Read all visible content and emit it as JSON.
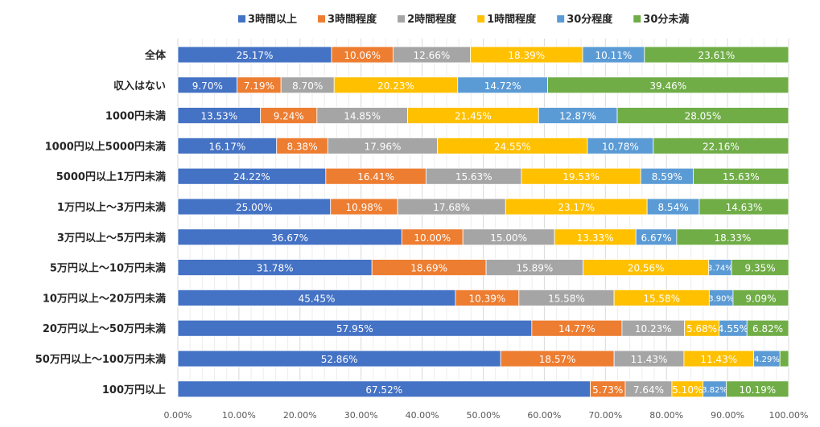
{
  "chart_data": {
    "type": "bar",
    "orientation": "horizontal",
    "stacked": "percent",
    "title": "",
    "xlabel": "",
    "ylabel": "",
    "xlim": [
      0,
      100
    ],
    "xticks": [
      "0.00%",
      "10.00%",
      "20.00%",
      "30.00%",
      "40.00%",
      "50.00%",
      "60.00%",
      "70.00%",
      "80.00%",
      "90.00%",
      "100.00%"
    ],
    "grid": true,
    "legend_position": "top",
    "categories": [
      "全体",
      "収入はない",
      "1000円未満",
      "1000円以上5000円未満",
      "5000円以上1万円未満",
      "1万円以上～3万円未満",
      "3万円以上～5万円未満",
      "5万円以上～10万円未満",
      "10万円以上～20万円未満",
      "20万円以上～50万円未満",
      "50万円以上～100万円未満",
      "100万円以上"
    ],
    "series": [
      {
        "name": "3時間以上",
        "color": "#4472C4",
        "values": [
          25.17,
          9.7,
          13.53,
          16.17,
          24.22,
          25.0,
          36.67,
          31.78,
          45.45,
          57.95,
          52.86,
          67.52
        ]
      },
      {
        "name": "3時間程度",
        "color": "#ED7D31",
        "values": [
          10.06,
          7.19,
          9.24,
          8.38,
          16.41,
          10.98,
          10.0,
          18.69,
          10.39,
          14.77,
          18.57,
          5.73
        ]
      },
      {
        "name": "2時間程度",
        "color": "#A5A5A5",
        "values": [
          12.66,
          8.7,
          14.85,
          17.96,
          15.63,
          17.68,
          15.0,
          15.89,
          15.58,
          10.23,
          11.43,
          7.64
        ]
      },
      {
        "name": "1時間程度",
        "color": "#FFC000",
        "values": [
          18.39,
          20.23,
          21.45,
          24.55,
          19.53,
          23.17,
          13.33,
          20.56,
          15.58,
          5.68,
          11.43,
          5.1
        ]
      },
      {
        "name": "30分程度",
        "color": "#5B9BD5",
        "values": [
          10.11,
          14.72,
          12.87,
          10.78,
          8.59,
          8.54,
          6.67,
          3.74,
          3.9,
          4.55,
          4.29,
          3.82
        ]
      },
      {
        "name": "30分未満",
        "color": "#70AD47",
        "values": [
          23.61,
          39.46,
          28.05,
          22.16,
          15.63,
          14.63,
          18.33,
          9.35,
          9.09,
          6.82,
          1.43,
          10.19
        ]
      }
    ],
    "data_labels": [
      [
        "25.17%",
        "10.06%",
        "12.66%",
        "18.39%",
        "10.11%",
        "23.61%"
      ],
      [
        "9.70%",
        "7.19%",
        "8.70%",
        "20.23%",
        "14.72%",
        "39.46%"
      ],
      [
        "13.53%",
        "9.24%",
        "14.85%",
        "21.45%",
        "12.87%",
        "28.05%"
      ],
      [
        "16.17%",
        "8.38%",
        "17.96%",
        "24.55%",
        "10.78%",
        "22.16%"
      ],
      [
        "24.22%",
        "16.41%",
        "15.63%",
        "19.53%",
        "8.59%",
        "15.63%"
      ],
      [
        "25.00%",
        "10.98%",
        "17.68%",
        "23.17%",
        "8.54%",
        "14.63%"
      ],
      [
        "36.67%",
        "10.00%",
        "15.00%",
        "13.33%",
        "6.67%",
        "18.33%"
      ],
      [
        "31.78%",
        "18.69%",
        "15.89%",
        "20.56%",
        "3.74%",
        "9.35%"
      ],
      [
        "45.45%",
        "10.39%",
        "15.58%",
        "15.58%",
        "3.90%",
        "9.09%"
      ],
      [
        "57.95%",
        "14.77%",
        "10.23%",
        "5.68%",
        "4.55%",
        "6.82%"
      ],
      [
        "52.86%",
        "18.57%",
        "11.43%",
        "11.43%",
        "4.29%",
        ""
      ],
      [
        "67.52%",
        "5.73%",
        "7.64%",
        "5.10%",
        "3.82%",
        "10.19%"
      ]
    ]
  }
}
